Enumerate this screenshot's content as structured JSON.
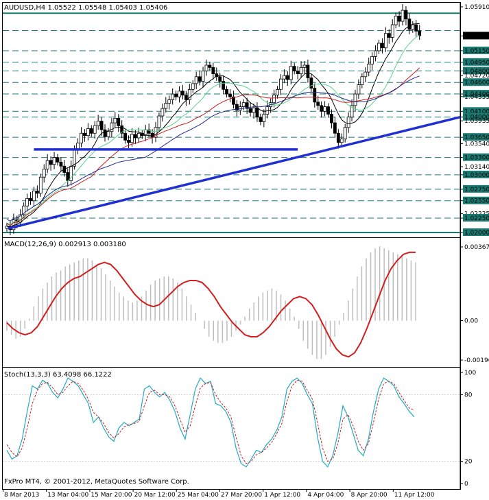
{
  "colors": {
    "background": "#ffffff",
    "axis": "#000000",
    "candle": "#000000",
    "level_line": "#1a7a72",
    "trend_line": "#1f2fd0",
    "ma_black": "#000000",
    "ma_green": "#5ad38a",
    "ma_red": "#c81e1e",
    "ma_blue": "#1f2a8a",
    "macd_hist": "#bdbdbd",
    "macd_signal": "#d21d1d",
    "stoch_main": "#23a9c4",
    "stoch_signal": "#c02020",
    "price_tag_bg": "#000000",
    "price_tag_text": "#ffffff"
  },
  "header": {
    "price_title": "AUDUSD,H4  1.05522 1.05548 1.05403 1.05406",
    "macd_title": "MACD(12,26,9) 0.002913 0.003180",
    "stoch_title": "Stoch(13,3,3) 63.4098 66.1222",
    "copyright": "FxPro MT4, © 2001-2012, MetaQuotes Software Corp."
  },
  "chart_data": [
    {
      "type": "candlestick",
      "symbol": "AUDUSD",
      "timeframe": "H4",
      "last_ohlc": {
        "open": 1.05522,
        "high": 1.05548,
        "low": 1.05403,
        "close": 1.05406
      },
      "ylim": [
        1.02,
        1.0591
      ],
      "y_tick_labels": [
        "1.05910",
        "1.05406",
        "1.05150",
        "1.04950",
        "1.04800",
        "1.04720",
        "1.04600",
        "1.04400",
        "1.04355",
        "1.04100",
        "1.04000",
        "1.03935",
        "1.03650",
        "1.03540",
        "1.03300",
        "1.03140",
        "1.03000",
        "1.02750",
        "1.02550",
        "1.02325",
        "1.02250",
        "1.02000"
      ],
      "current_price": "1.05406",
      "horizontal_levels": [
        1.058,
        1.055,
        1.0515,
        1.0495,
        1.048,
        1.046,
        1.044,
        1.041,
        1.04,
        1.0365,
        1.033,
        1.03,
        1.0275,
        1.0255,
        1.0225,
        1.02
      ],
      "highlighted_levels": [
        "1.05800",
        "1.05500",
        "1.05150",
        "1.04950",
        "1.04800",
        "1.04600",
        "1.04400",
        "1.04100",
        "1.04000",
        "1.03650",
        "1.03300",
        "1.03000",
        "1.02750",
        "1.02550",
        "1.02250",
        "1.02000"
      ],
      "x_labels": [
        "8 Mar 2013",
        "13 Mar 04:00",
        "15 Mar 20:00",
        "20 Mar 12:00",
        "25 Mar 04:00",
        "27 Mar 20:00",
        "1 Apr 12:00",
        "4 Apr 04:00",
        "8 Apr 20:00",
        "11 Apr 12:00"
      ],
      "closes": [
        1.0211,
        1.0205,
        1.0222,
        1.0218,
        1.0231,
        1.0246,
        1.0259,
        1.0255,
        1.0272,
        1.0268,
        1.0296,
        1.031,
        1.0325,
        1.0318,
        1.033,
        1.0322,
        1.0315,
        1.0304,
        1.029,
        1.0315,
        1.0345,
        1.0355,
        1.0372,
        1.0368,
        1.038,
        1.0372,
        1.0385,
        1.0393,
        1.0378,
        1.0366,
        1.0375,
        1.039,
        1.0398,
        1.0385,
        1.0372,
        1.036,
        1.0356,
        1.037,
        1.0364,
        1.0372,
        1.0368,
        1.0378,
        1.0372,
        1.0365,
        1.0382,
        1.0402,
        1.0415,
        1.0424,
        1.043,
        1.044,
        1.0435,
        1.0445,
        1.0438,
        1.043,
        1.0448,
        1.0458,
        1.047,
        1.0462,
        1.048,
        1.049,
        1.0486,
        1.0475,
        1.047,
        1.0462,
        1.0448,
        1.044,
        1.0435,
        1.0422,
        1.0412,
        1.0418,
        1.0425,
        1.0415,
        1.0408,
        1.0416,
        1.04,
        1.0392,
        1.0405,
        1.0418,
        1.0425,
        1.0438,
        1.0448,
        1.0466,
        1.0472,
        1.0465,
        1.0488,
        1.048,
        1.0475,
        1.0486,
        1.049,
        1.0468,
        1.045,
        1.0426,
        1.042,
        1.041,
        1.0418,
        1.0405,
        1.039,
        1.0372,
        1.0356,
        1.0362,
        1.0382,
        1.04,
        1.042,
        1.044,
        1.0456,
        1.047,
        1.0478,
        1.0492,
        1.0505,
        1.0515,
        1.0528,
        1.052,
        1.0545,
        1.0538,
        1.056,
        1.0575,
        1.0566,
        1.0585,
        1.057,
        1.0552,
        1.056,
        1.0549,
        1.0541
      ],
      "moving_averages": [
        {
          "color": "ma_black",
          "values_start": 1.029,
          "values_end": 1.047
        },
        {
          "color": "ma_green",
          "values_start": 1.025,
          "values_end": 1.046
        },
        {
          "color": "ma_red",
          "values_start": 1.024,
          "values_end": 1.0455
        },
        {
          "color": "ma_blue",
          "values_start": 1.029,
          "values_end": 1.0425
        }
      ],
      "trendlines": [
        {
          "from": [
            "8 Mar 2013",
            1.0207
          ],
          "to": [
            "11 Apr 12:00+",
            1.04
          ]
        },
        {
          "from": [
            "13 Mar 04:00",
            1.0344
          ],
          "to": [
            "4 Apr 04:00+",
            1.0344
          ]
        }
      ]
    },
    {
      "type": "bar+line",
      "name": "MACD(12,26,9)",
      "value": 0.002913,
      "signal": 0.00318,
      "y_tick_labels": [
        "0.00367",
        "0.00",
        "-0.00196"
      ],
      "ylim": [
        -0.00196,
        0.00367
      ],
      "histogram": [
        -0.0005,
        -0.0007,
        -0.0009,
        -0.0008,
        -0.0004,
        0.0001,
        0.0007,
        0.0012,
        0.0016,
        0.0019,
        0.0022,
        0.0024,
        0.0025,
        0.0027,
        0.0028,
        0.0029,
        0.003,
        0.0031,
        0.0031,
        0.003,
        0.0028,
        0.0026,
        0.0023,
        0.002,
        0.0017,
        0.0014,
        0.0012,
        0.001,
        0.0009,
        0.001,
        0.0012,
        0.0015,
        0.0018,
        0.002,
        0.0021,
        0.0022,
        0.0022,
        0.0021,
        0.0019,
        0.0016,
        0.0012,
        0.0008,
        0.0004,
        0.0,
        -0.0004,
        -0.0008,
        -0.001,
        -0.0011,
        -0.0011,
        -0.001,
        -0.0008,
        -0.0005,
        -0.0002,
        0.0002,
        0.0006,
        0.0009,
        0.0012,
        0.0014,
        0.0015,
        0.0016,
        0.0015,
        0.0013,
        0.001,
        0.0006,
        0.0002,
        -0.0004,
        -0.001,
        -0.0014,
        -0.0017,
        -0.0019,
        -0.0019,
        -0.0017,
        -0.0013,
        -0.0008,
        -0.0002,
        0.0004,
        0.001,
        0.0016,
        0.0022,
        0.0027,
        0.0031,
        0.0034,
        0.0036,
        0.0037,
        0.0036,
        0.0035,
        0.0034,
        0.0033,
        0.0032,
        0.0031,
        0.003,
        0.0029
      ],
      "signal_line": [
        -0.0001,
        -0.0004,
        -0.0006,
        -0.0007,
        -0.0006,
        -0.0003,
        0.0002,
        0.0007,
        0.0012,
        0.0016,
        0.0019,
        0.0021,
        0.0022,
        0.0024,
        0.0026,
        0.0028,
        0.0029,
        0.0028,
        0.0025,
        0.0021,
        0.0017,
        0.0013,
        0.001,
        0.0008,
        0.0007,
        0.0008,
        0.0011,
        0.0014,
        0.0017,
        0.0019,
        0.002,
        0.002,
        0.0019,
        0.0016,
        0.0012,
        0.0007,
        0.0003,
        -0.0001,
        -0.0004,
        -0.0007,
        -0.0008,
        -0.0008,
        -0.0006,
        -0.0003,
        0.0001,
        0.0005,
        0.0008,
        0.0011,
        0.0012,
        0.0011,
        0.0008,
        0.0003,
        -0.0003,
        -0.0009,
        -0.0014,
        -0.0017,
        -0.0018,
        -0.0016,
        -0.0011,
        -0.0004,
        0.0004,
        0.0012,
        0.002,
        0.0026,
        0.003,
        0.0033,
        0.0034,
        0.0034
      ]
    },
    {
      "type": "line",
      "name": "Stoch(13,3,3)",
      "main": 63.4098,
      "signal": 66.1222,
      "ylim": [
        0,
        100
      ],
      "y_tick_labels": [
        "100",
        "80",
        "20",
        "0"
      ],
      "main_line": [
        30,
        22,
        25,
        40,
        65,
        88,
        85,
        93,
        90,
        82,
        77,
        85,
        95,
        92,
        88,
        80,
        72,
        55,
        60,
        50,
        42,
        38,
        50,
        55,
        52,
        55,
        58,
        85,
        88,
        82,
        78,
        82,
        75,
        65,
        50,
        40,
        62,
        85,
        95,
        90,
        92,
        72,
        70,
        65,
        55,
        32,
        18,
        15,
        22,
        30,
        28,
        35,
        40,
        48,
        60,
        85,
        92,
        95,
        90,
        80,
        72,
        42,
        20,
        15,
        25,
        45,
        70,
        60,
        45,
        30,
        25,
        40,
        65,
        85,
        95,
        92,
        88,
        78,
        72,
        65,
        60
      ],
      "signal_line": [
        35,
        28,
        24,
        32,
        50,
        72,
        84,
        90,
        91,
        86,
        80,
        82,
        88,
        92,
        90,
        84,
        76,
        64,
        60,
        54,
        46,
        41,
        45,
        51,
        53,
        54,
        56,
        70,
        82,
        84,
        80,
        80,
        78,
        70,
        58,
        46,
        52,
        70,
        86,
        90,
        91,
        80,
        73,
        68,
        60,
        42,
        25,
        18,
        20,
        26,
        28,
        32,
        37,
        45,
        54,
        74,
        88,
        93,
        92,
        84,
        76,
        55,
        32,
        20,
        22,
        36,
        58,
        62,
        52,
        38,
        30,
        36,
        55,
        76,
        90,
        92,
        90,
        82,
        75,
        68,
        66
      ]
    }
  ]
}
